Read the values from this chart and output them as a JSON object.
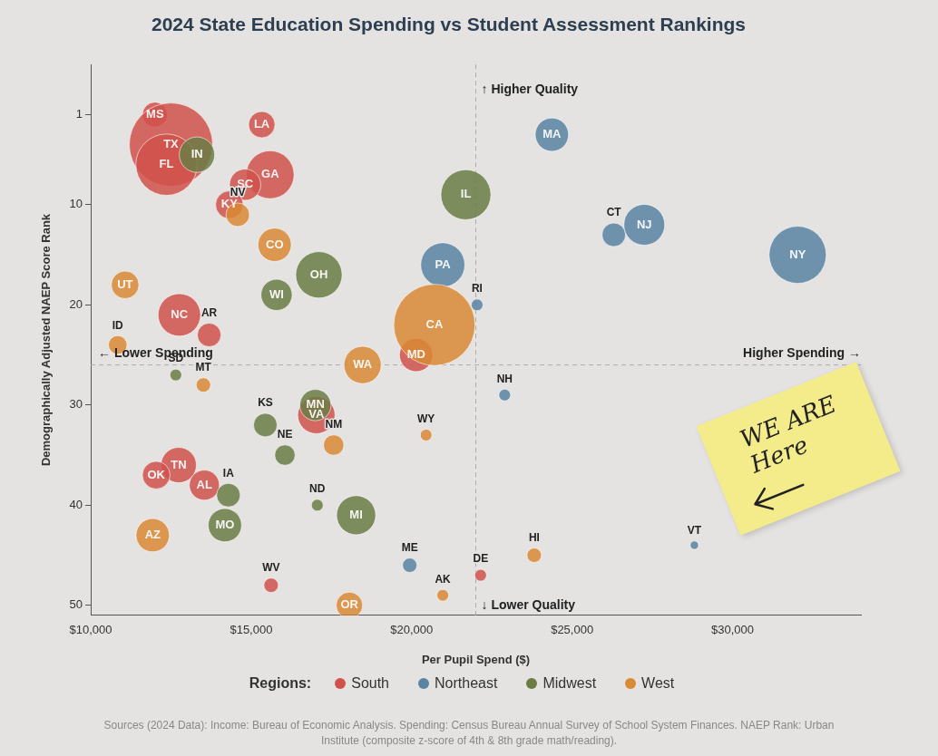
{
  "chart_data": {
    "type": "bubble",
    "title": "2024 State Education Spending vs Student Assessment Rankings",
    "xlabel": "Per Pupil Spend ($)",
    "ylabel": "Demographically Adjusted NAEP Score Rank",
    "legend_title": "Regions:",
    "legend": "bottom",
    "xlim": [
      10000,
      34000
    ],
    "xticks": [
      {
        "value": 10000,
        "label": "$10,000"
      },
      {
        "value": 15000,
        "label": "$15,000"
      },
      {
        "value": 20000,
        "label": "$20,000"
      },
      {
        "value": 25000,
        "label": "$25,000"
      },
      {
        "value": 30000,
        "label": "$30,000"
      }
    ],
    "ylim": [
      51,
      -4
    ],
    "yticks": [
      1,
      10,
      20,
      30,
      40,
      50
    ],
    "grid": false,
    "ref_lines": [
      {
        "axis": "x",
        "value": 22000,
        "label": null,
        "color": "#aaaaaa",
        "line_style": "dashed"
      },
      {
        "axis": "y",
        "value": 26,
        "label": null,
        "color": "#aaaaaa",
        "line_style": "dashed"
      }
    ],
    "series": [
      {
        "name": "South",
        "color": "#d0524b",
        "x": [
          12000,
          12500,
          12360,
          15330,
          15590,
          14810,
          14320,
          12760,
          13690,
          20140,
          17030,
          12740,
          12040,
          13540,
          15620,
          22150
        ],
        "values": [
          1,
          4,
          6,
          2,
          7,
          8,
          10,
          21,
          23,
          25,
          31,
          36,
          37,
          38,
          48,
          47
        ],
        "sizes": [
          0.09,
          1,
          0.54,
          0.1,
          0.33,
          0.14,
          0.11,
          0.26,
          0.08,
          0.16,
          0.2,
          0.18,
          0.11,
          0.13,
          0.03,
          0.02
        ]
      },
      {
        "name": "Northeast",
        "color": "#5a84a2",
        "x": [
          24370,
          26300,
          27250,
          32030,
          20970,
          22040,
          22900,
          19940,
          28810
        ],
        "values": [
          3,
          13,
          12,
          15,
          16,
          20,
          29,
          46,
          44
        ],
        "sizes": [
          0.16,
          0.08,
          0.24,
          0.47,
          0.28,
          0.02,
          0.02,
          0.03,
          0.01
        ]
      },
      {
        "name": "Midwest",
        "color": "#6b7c45",
        "x": [
          13310,
          21690,
          17110,
          15790,
          12650,
          15440,
          17000,
          16050,
          14290,
          14180,
          17060,
          18270
        ],
        "values": [
          5,
          9,
          17,
          19,
          27,
          32,
          30,
          35,
          39,
          42,
          40,
          41
        ],
        "sizes": [
          0.18,
          0.36,
          0.31,
          0.14,
          0.02,
          0.08,
          0.14,
          0.06,
          0.08,
          0.16,
          0.02,
          0.22
        ]
      },
      {
        "name": "West",
        "color": "#d98a35",
        "x": [
          14580,
          15730,
          11070,
          10840,
          20710,
          18470,
          13510,
          17570,
          20450,
          11930,
          23820,
          20970,
          18060
        ],
        "values": [
          11,
          14,
          18,
          24,
          22,
          26,
          28,
          34,
          33,
          43,
          45,
          49,
          50
        ],
        "sizes": [
          0.08,
          0.16,
          0.11,
          0.05,
          0.95,
          0.2,
          0.03,
          0.06,
          0.02,
          0.16,
          0.03,
          0.02,
          0.1
        ]
      }
    ],
    "annotations": [
      {
        "text": "MS",
        "x": 12000,
        "y": 1
      },
      {
        "text": "TX",
        "x": 12500,
        "y": 4
      },
      {
        "text": "FL",
        "x": 12360,
        "y": 6
      },
      {
        "text": "LA",
        "x": 15330,
        "y": 2
      },
      {
        "text": "GA",
        "x": 15590,
        "y": 7
      },
      {
        "text": "SC",
        "x": 14810,
        "y": 8
      },
      {
        "text": "KY",
        "x": 14320,
        "y": 10
      },
      {
        "text": "NC",
        "x": 12760,
        "y": 21
      },
      {
        "text": "AR",
        "x": 13690,
        "y": 23
      },
      {
        "text": "MD",
        "x": 20140,
        "y": 25
      },
      {
        "text": "VA",
        "x": 17030,
        "y": 31
      },
      {
        "text": "TN",
        "x": 12740,
        "y": 36
      },
      {
        "text": "OK",
        "x": 12040,
        "y": 37
      },
      {
        "text": "AL",
        "x": 13540,
        "y": 38
      },
      {
        "text": "WV",
        "x": 15620,
        "y": 48
      },
      {
        "text": "DE",
        "x": 22150,
        "y": 47
      },
      {
        "text": "MA",
        "x": 24370,
        "y": 3
      },
      {
        "text": "CT",
        "x": 26300,
        "y": 13
      },
      {
        "text": "NJ",
        "x": 27250,
        "y": 12
      },
      {
        "text": "NY",
        "x": 32030,
        "y": 15
      },
      {
        "text": "PA",
        "x": 20970,
        "y": 16
      },
      {
        "text": "RI",
        "x": 22040,
        "y": 20
      },
      {
        "text": "NH",
        "x": 22900,
        "y": 29
      },
      {
        "text": "ME",
        "x": 19940,
        "y": 46
      },
      {
        "text": "VT",
        "x": 28810,
        "y": 44
      },
      {
        "text": "IN",
        "x": 13310,
        "y": 5
      },
      {
        "text": "IL",
        "x": 21690,
        "y": 9
      },
      {
        "text": "OH",
        "x": 17110,
        "y": 17
      },
      {
        "text": "WI",
        "x": 15790,
        "y": 19
      },
      {
        "text": "SD",
        "x": 12650,
        "y": 27
      },
      {
        "text": "KS",
        "x": 15440,
        "y": 32
      },
      {
        "text": "MN",
        "x": 17000,
        "y": 30
      },
      {
        "text": "NE",
        "x": 16050,
        "y": 35
      },
      {
        "text": "IA",
        "x": 14290,
        "y": 39
      },
      {
        "text": "MO",
        "x": 14180,
        "y": 42
      },
      {
        "text": "ND",
        "x": 17060,
        "y": 40
      },
      {
        "text": "MI",
        "x": 18270,
        "y": 41
      },
      {
        "text": "NV",
        "x": 14580,
        "y": 11
      },
      {
        "text": "CO",
        "x": 15730,
        "y": 14
      },
      {
        "text": "UT",
        "x": 11070,
        "y": 18
      },
      {
        "text": "ID",
        "x": 10840,
        "y": 24
      },
      {
        "text": "CA",
        "x": 20710,
        "y": 22
      },
      {
        "text": "WA",
        "x": 18470,
        "y": 26
      },
      {
        "text": "MT",
        "x": 13510,
        "y": 28
      },
      {
        "text": "NM",
        "x": 17570,
        "y": 34
      },
      {
        "text": "WY",
        "x": 20450,
        "y": 33
      },
      {
        "text": "AZ",
        "x": 11930,
        "y": 43
      },
      {
        "text": "HI",
        "x": 23820,
        "y": 45
      },
      {
        "text": "AK",
        "x": 20970,
        "y": 49
      },
      {
        "text": "OR",
        "x": 18060,
        "y": 50
      },
      {
        "text": "↑ Higher Quality",
        "x": 22000,
        "y": -1.5
      },
      {
        "text": "↓ Lower Quality",
        "x": 22000,
        "y": 50
      },
      {
        "text": "← Lower Spending",
        "x": 10000,
        "y": 26
      },
      {
        "text": "Higher Spending →",
        "x": 34000,
        "y": 26
      },
      "WE ARE Here",
      "Sources (2024 Data): Income: Bureau of Economic Analysis. Spending: Census Bureau Annual Survey of School System Finances. NAEP Rank: Urban Institute (composite z-score of 4th & 8th grade math/reading)."
    ]
  }
}
